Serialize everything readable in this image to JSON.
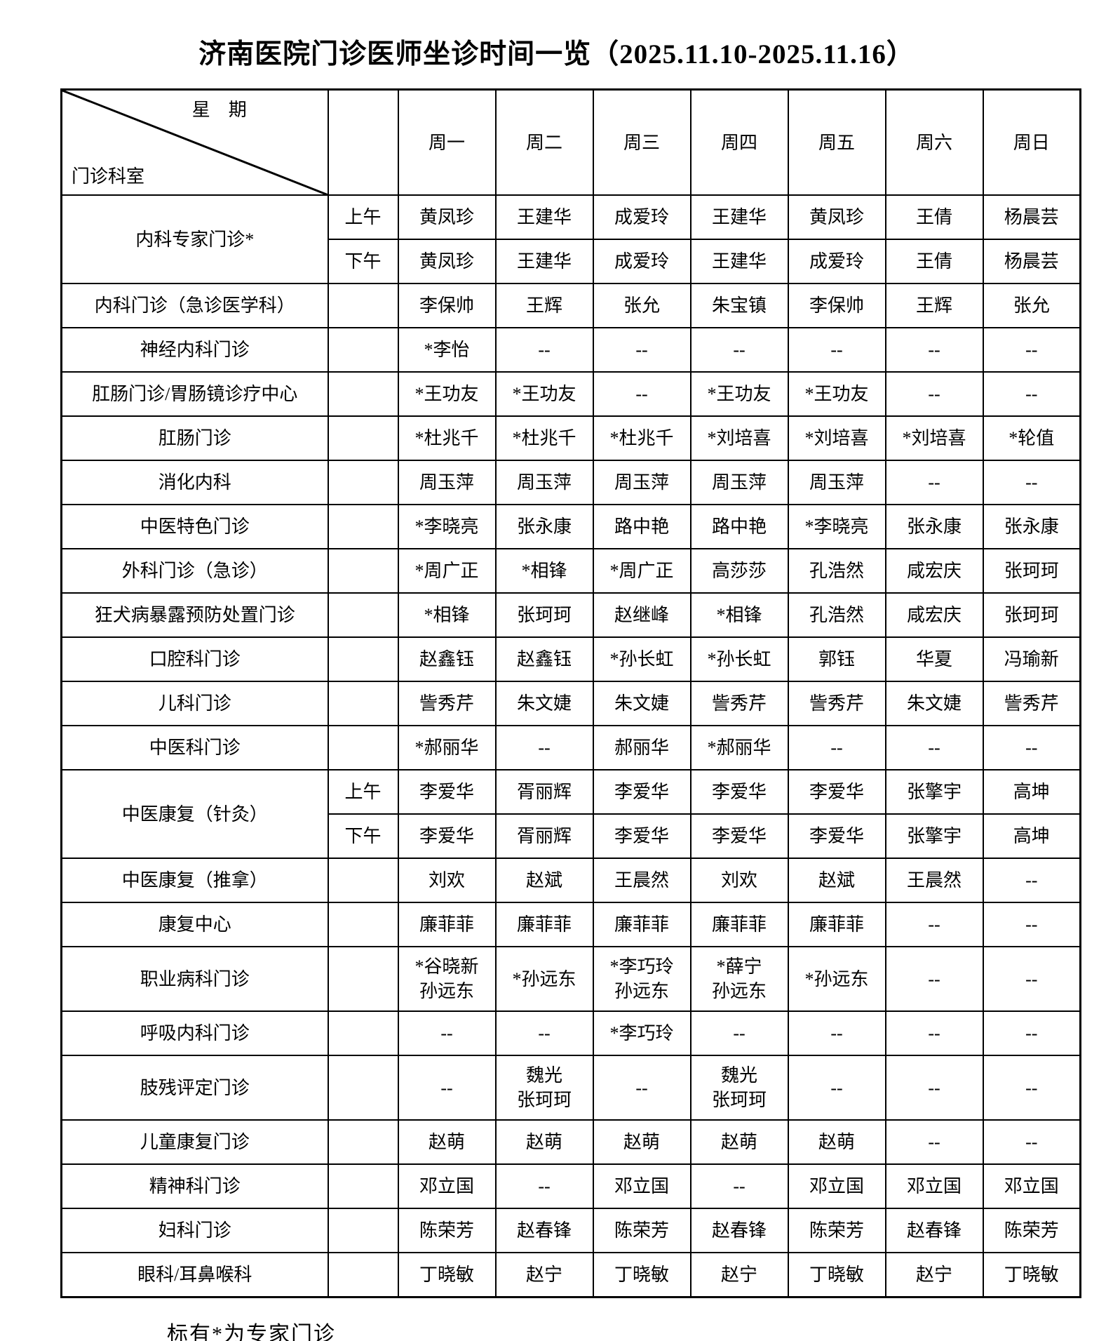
{
  "title": "济南医院门诊医师坐诊时间一览（2025.11.10-2025.11.16）",
  "header": {
    "diagonal_top": "星　期",
    "diagonal_bottom": "门诊科室",
    "time_col": "",
    "days": [
      "周一",
      "周二",
      "周三",
      "周四",
      "周五",
      "周六",
      "周日"
    ]
  },
  "rows": [
    {
      "dept": "内科专家门诊*",
      "times": [
        {
          "label": "上午",
          "cells": [
            "黄凤珍",
            "王建华",
            "成爱玲",
            "王建华",
            "黄凤珍",
            "王倩",
            "杨晨芸"
          ]
        },
        {
          "label": "下午",
          "cells": [
            "黄凤珍",
            "王建华",
            "成爱玲",
            "王建华",
            "成爱玲",
            "王倩",
            "杨晨芸"
          ]
        }
      ]
    },
    {
      "dept": "内科门诊（急诊医学科）",
      "times": [
        {
          "label": "",
          "cells": [
            "李保帅",
            "王辉",
            "张允",
            "朱宝镇",
            "李保帅",
            "王辉",
            "张允"
          ]
        }
      ]
    },
    {
      "dept": "神经内科门诊",
      "times": [
        {
          "label": "",
          "cells": [
            "*李怡",
            "--",
            "--",
            "--",
            "--",
            "--",
            "--"
          ]
        }
      ]
    },
    {
      "dept": "肛肠门诊/胃肠镜诊疗中心",
      "times": [
        {
          "label": "",
          "cells": [
            "*王功友",
            "*王功友",
            "--",
            "*王功友",
            "*王功友",
            "--",
            "--"
          ]
        }
      ]
    },
    {
      "dept": "肛肠门诊",
      "times": [
        {
          "label": "",
          "cells": [
            "*杜兆千",
            "*杜兆千",
            "*杜兆千",
            "*刘培喜",
            "*刘培喜",
            "*刘培喜",
            "*轮值"
          ]
        }
      ]
    },
    {
      "dept": "消化内科",
      "times": [
        {
          "label": "",
          "cells": [
            "周玉萍",
            "周玉萍",
            "周玉萍",
            "周玉萍",
            "周玉萍",
            "--",
            "--"
          ]
        }
      ]
    },
    {
      "dept": "中医特色门诊",
      "times": [
        {
          "label": "",
          "cells": [
            "*李晓亮",
            "张永康",
            "路中艳",
            "路中艳",
            "*李晓亮",
            "张永康",
            "张永康"
          ]
        }
      ]
    },
    {
      "dept": "外科门诊（急诊）",
      "times": [
        {
          "label": "",
          "cells": [
            "*周广正",
            "*相锋",
            "*周广正",
            "高莎莎",
            "孔浩然",
            "咸宏庆",
            "张珂珂"
          ]
        }
      ]
    },
    {
      "dept": "狂犬病暴露预防处置门诊",
      "times": [
        {
          "label": "",
          "cells": [
            "*相锋",
            "张珂珂",
            "赵继峰",
            "*相锋",
            "孔浩然",
            "咸宏庆",
            "张珂珂"
          ]
        }
      ]
    },
    {
      "dept": "口腔科门诊",
      "times": [
        {
          "label": "",
          "cells": [
            "赵鑫钰",
            "赵鑫钰",
            "*孙长虹",
            "*孙长虹",
            "郭钰",
            "华夏",
            "冯瑜新"
          ]
        }
      ]
    },
    {
      "dept": "儿科门诊",
      "times": [
        {
          "label": "",
          "cells": [
            "訾秀芹",
            "朱文婕",
            "朱文婕",
            "訾秀芹",
            "訾秀芹",
            "朱文婕",
            "訾秀芹"
          ]
        }
      ]
    },
    {
      "dept": "中医科门诊",
      "times": [
        {
          "label": "",
          "cells": [
            "*郝丽华",
            "--",
            "郝丽华",
            "*郝丽华",
            "--",
            "--",
            "--"
          ]
        }
      ]
    },
    {
      "dept": "中医康复（针灸）",
      "times": [
        {
          "label": "上午",
          "cells": [
            "李爱华",
            "胥丽辉",
            "李爱华",
            "李爱华",
            "李爱华",
            "张擎宇",
            "高坤"
          ]
        },
        {
          "label": "下午",
          "cells": [
            "李爱华",
            "胥丽辉",
            "李爱华",
            "李爱华",
            "李爱华",
            "张擎宇",
            "高坤"
          ]
        }
      ]
    },
    {
      "dept": "中医康复（推拿）",
      "times": [
        {
          "label": "",
          "cells": [
            "刘欢",
            "赵斌",
            "王晨然",
            "刘欢",
            "赵斌",
            "王晨然",
            "--"
          ]
        }
      ]
    },
    {
      "dept": "康复中心",
      "times": [
        {
          "label": "",
          "cells": [
            "廉菲菲",
            "廉菲菲",
            "廉菲菲",
            "廉菲菲",
            "廉菲菲",
            "--",
            "--"
          ]
        }
      ]
    },
    {
      "dept": "职业病科门诊",
      "times": [
        {
          "label": "",
          "cells": [
            "*谷晓新\n孙远东",
            "*孙远东",
            "*李巧玲\n孙远东",
            "*薛宁\n孙远东",
            "*孙远东",
            "--",
            "--"
          ]
        }
      ]
    },
    {
      "dept": "呼吸内科门诊",
      "times": [
        {
          "label": "",
          "cells": [
            "--",
            "--",
            "*李巧玲",
            "--",
            "--",
            "--",
            "--"
          ]
        }
      ]
    },
    {
      "dept": "肢残评定门诊",
      "times": [
        {
          "label": "",
          "cells": [
            "--",
            "魏光\n张珂珂",
            "--",
            "魏光\n张珂珂",
            "--",
            "--",
            "--"
          ]
        }
      ]
    },
    {
      "dept": "儿童康复门诊",
      "times": [
        {
          "label": "",
          "cells": [
            "赵萌",
            "赵萌",
            "赵萌",
            "赵萌",
            "赵萌",
            "--",
            "--"
          ]
        }
      ]
    },
    {
      "dept": "精神科门诊",
      "times": [
        {
          "label": "",
          "cells": [
            "邓立国",
            "--",
            "邓立国",
            "--",
            "邓立国",
            "邓立国",
            "邓立国"
          ]
        }
      ]
    },
    {
      "dept": "妇科门诊",
      "times": [
        {
          "label": "",
          "cells": [
            "陈荣芳",
            "赵春锋",
            "陈荣芳",
            "赵春锋",
            "陈荣芳",
            "赵春锋",
            "陈荣芳"
          ]
        }
      ]
    },
    {
      "dept": "眼科/耳鼻喉科",
      "times": [
        {
          "label": "",
          "cells": [
            "丁晓敏",
            "赵宁",
            "丁晓敏",
            "赵宁",
            "丁晓敏",
            "赵宁",
            "丁晓敏"
          ]
        }
      ]
    }
  ],
  "footer_note": "标有*为专家门诊"
}
